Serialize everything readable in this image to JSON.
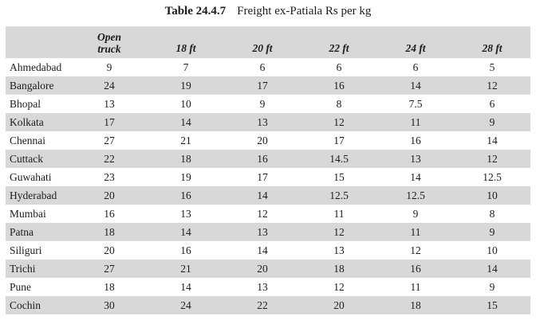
{
  "title": {
    "prefix": "Table 24.4.7",
    "text": "Freight ex-Patiala Rs per kg"
  },
  "colors": {
    "row_stripe": "#d8d8d8",
    "text": "#1c1c1c",
    "background": "#ffffff"
  },
  "table": {
    "headers": [
      "Open\ntruck",
      "18 ft",
      "20 ft",
      "22 ft",
      "24 ft",
      "28 ft"
    ],
    "rows": [
      {
        "city": "Ahmedabad",
        "values": [
          "9",
          "7",
          "6",
          "6",
          "6",
          "5"
        ]
      },
      {
        "city": "Bangalore",
        "values": [
          "24",
          "19",
          "17",
          "16",
          "14",
          "12"
        ]
      },
      {
        "city": "Bhopal",
        "values": [
          "13",
          "10",
          "9",
          "8",
          "7.5",
          "6"
        ]
      },
      {
        "city": "Kolkata",
        "values": [
          "17",
          "14",
          "13",
          "12",
          "11",
          "9"
        ]
      },
      {
        "city": "Chennai",
        "values": [
          "27",
          "21",
          "20",
          "17",
          "16",
          "14"
        ]
      },
      {
        "city": "Cuttack",
        "values": [
          "22",
          "18",
          "16",
          "14.5",
          "13",
          "12"
        ]
      },
      {
        "city": "Guwahati",
        "values": [
          "23",
          "19",
          "17",
          "15",
          "14",
          "12.5"
        ]
      },
      {
        "city": "Hyderabad",
        "values": [
          "20",
          "16",
          "14",
          "12.5",
          "12.5",
          "10"
        ]
      },
      {
        "city": "Mumbai",
        "values": [
          "16",
          "13",
          "12",
          "11",
          "9",
          "8"
        ]
      },
      {
        "city": "Patna",
        "values": [
          "18",
          "14",
          "13",
          "12",
          "11",
          "9"
        ]
      },
      {
        "city": "Siliguri",
        "values": [
          "20",
          "16",
          "14",
          "13",
          "12",
          "10"
        ]
      },
      {
        "city": "Trichi",
        "values": [
          "27",
          "21",
          "20",
          "18",
          "16",
          "14"
        ]
      },
      {
        "city": "Pune",
        "values": [
          "18",
          "14",
          "13",
          "12",
          "11",
          "9"
        ]
      },
      {
        "city": "Cochin",
        "values": [
          "30",
          "24",
          "22",
          "20",
          "18",
          "15"
        ]
      }
    ]
  }
}
